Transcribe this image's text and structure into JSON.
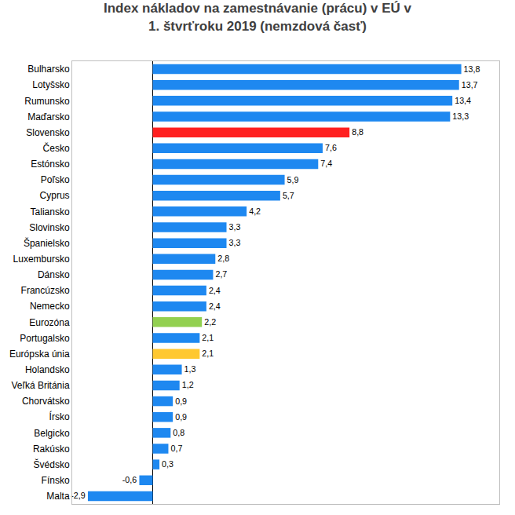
{
  "chart_data": {
    "type": "bar",
    "title": "Index nákladov na zamestnávanie (prácu) v EÚ v 1. štvrťroku 2019 (nemzdová časť)",
    "orientation": "horizontal",
    "categories": [
      "Bulharsko",
      "Lotyšsko",
      "Rumunsko",
      "Maďarsko",
      "Slovensko",
      "Česko",
      "Estónsko",
      "Poľsko",
      "Cyprus",
      "Taliansko",
      "Slovinsko",
      "Španielsko",
      "Luxembursko",
      "Dánsko",
      "Francúzsko",
      "Nemecko",
      "Eurozóna",
      "Portugalsko",
      "Európska únia",
      "Holandsko",
      "Veľká Británia",
      "Chorvátsko",
      "Írsko",
      "Belgicko",
      "Rakúsko",
      "Švédsko",
      "Fínsko",
      "Malta"
    ],
    "values": [
      13.8,
      13.7,
      13.4,
      13.3,
      8.8,
      7.6,
      7.4,
      5.9,
      5.7,
      4.2,
      3.3,
      3.3,
      2.8,
      2.7,
      2.4,
      2.4,
      2.2,
      2.1,
      2.1,
      1.3,
      1.2,
      0.9,
      0.9,
      0.8,
      0.7,
      0.3,
      -0.6,
      -2.9
    ],
    "value_labels": [
      "13,8",
      "13,7",
      "13,4",
      "13,3",
      "8,8",
      "7,6",
      "7,4",
      "5,9",
      "5,7",
      "4,2",
      "3,3",
      "3,3",
      "2,8",
      "2,7",
      "2,4",
      "2,4",
      "2,2",
      "2,1",
      "2,1",
      "1,3",
      "1,2",
      "0,9",
      "0,9",
      "0,8",
      "0,7",
      "0,3",
      "-0,6",
      "-2,9"
    ],
    "colors": [
      "#1e88f0",
      "#1e88f0",
      "#1e88f0",
      "#1e88f0",
      "#ff2020",
      "#1e88f0",
      "#1e88f0",
      "#1e88f0",
      "#1e88f0",
      "#1e88f0",
      "#1e88f0",
      "#1e88f0",
      "#1e88f0",
      "#1e88f0",
      "#1e88f0",
      "#1e88f0",
      "#92d050",
      "#1e88f0",
      "#ffc830",
      "#1e88f0",
      "#1e88f0",
      "#1e88f0",
      "#1e88f0",
      "#1e88f0",
      "#1e88f0",
      "#1e88f0",
      "#1e88f0",
      "#1e88f0"
    ],
    "xlim": [
      -3.6,
      15.5
    ],
    "data_labels": true,
    "tick_labels": "y",
    "grid": false
  }
}
